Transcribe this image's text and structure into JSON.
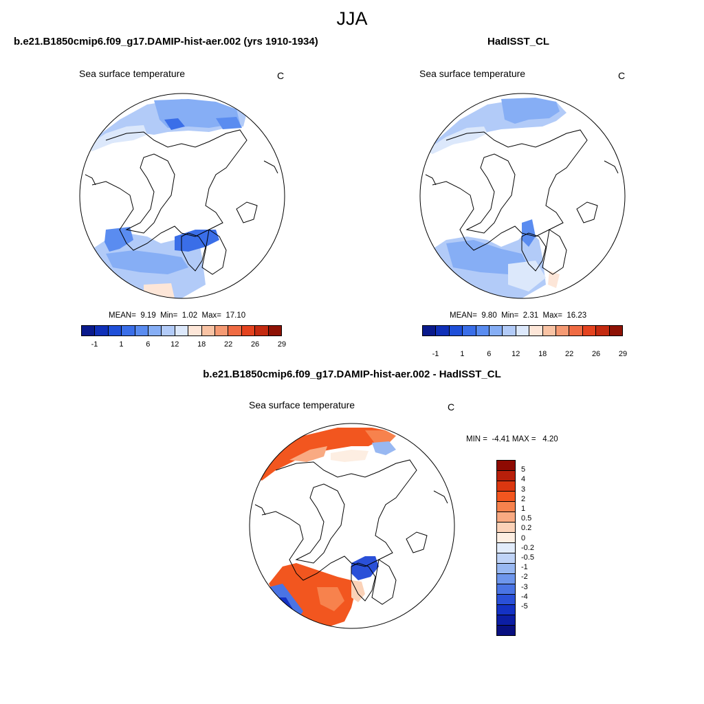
{
  "title": "JJA",
  "panels": {
    "model": {
      "title": "b.e21.B1850cmip6.f09_g17.DAMIP-hist-aer.002 (yrs 1910-1934)",
      "variable": "Sea surface temperature",
      "units": "C",
      "stats": {
        "mean_label": "MEAN=",
        "mean": "9.19",
        "min_label": "Min=",
        "min": "1.02",
        "max_label": "Max=",
        "max": "17.10"
      }
    },
    "obs": {
      "title": "HadISST_CL",
      "variable": "Sea surface temperature",
      "units": "C",
      "stats": {
        "mean_label": "MEAN=",
        "mean": "9.80",
        "min_label": "Min=",
        "min": "2.31",
        "max_label": "Max=",
        "max": "16.23"
      }
    },
    "diff": {
      "title": "b.e21.B1850cmip6.f09_g17.DAMIP-hist-aer.002 - HadISST_CL",
      "variable": "Sea surface temperature",
      "units": "C",
      "stats": {
        "min_label": "MIN =",
        "min": "-4.41",
        "max_label": "MAX =",
        "max": "4.20"
      }
    }
  },
  "sst_colorbar": {
    "colors": [
      "#0a1a8c",
      "#1030b8",
      "#1f4fd8",
      "#3a6ee8",
      "#5a8cf0",
      "#86aef5",
      "#b2cbf8",
      "#dce8fb",
      "#fde6d8",
      "#f9c3a4",
      "#f59a73",
      "#ef6b43",
      "#e4431f",
      "#c42a10",
      "#8e1205"
    ],
    "tick_labels": [
      "-1",
      "1",
      "6",
      "12",
      "18",
      "22",
      "26",
      "29"
    ]
  },
  "diff_colorbar": {
    "colors": [
      "#8e0a02",
      "#b81f0a",
      "#db3710",
      "#f2561f",
      "#f7824d",
      "#f9aa82",
      "#fbd2b8",
      "#fdeee2",
      "#e2ecfb",
      "#bfd3f7",
      "#98b8f2",
      "#6e96ec",
      "#4a74e4",
      "#2a50d8",
      "#1432c4",
      "#0c1ea4",
      "#081080"
    ],
    "tick_labels": [
      "5",
      "4",
      "3",
      "2",
      "1",
      "0.5",
      "0.2",
      "0",
      "-0.2",
      "-0.5",
      "-1",
      "-2",
      "-3",
      "-4",
      "-5"
    ]
  }
}
